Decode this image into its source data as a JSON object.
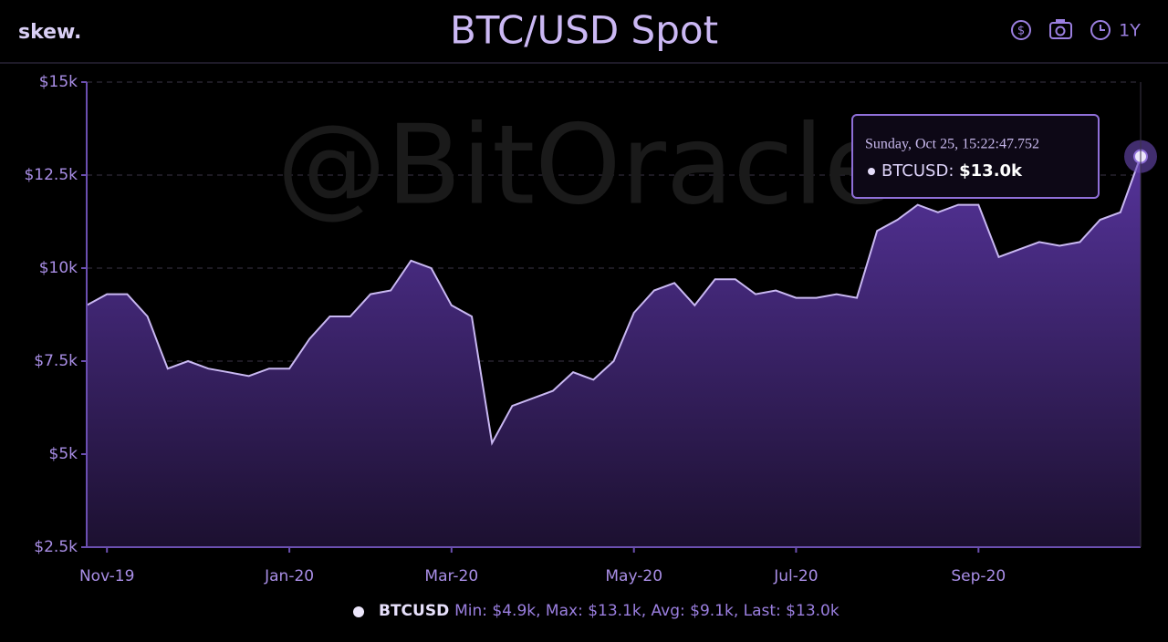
{
  "brand": "skew.",
  "watermark": "@BitOracle",
  "toolbar": {
    "currency": "$",
    "range": "1Y"
  },
  "chart_data": {
    "type": "area",
    "title": "BTC/USD Spot",
    "categories": [
      null,
      "Nov-19",
      null,
      null,
      null,
      null,
      null,
      null,
      null,
      null,
      "Jan-20",
      null,
      null,
      null,
      null,
      null,
      null,
      null,
      "Mar-20",
      null,
      null,
      null,
      null,
      null,
      null,
      null,
      null,
      "May-20",
      null,
      null,
      null,
      null,
      null,
      null,
      null,
      "Jul-20",
      null,
      null,
      null,
      null,
      null,
      null,
      null,
      null,
      "Sep-20",
      null,
      null,
      null,
      null,
      null,
      null,
      null,
      null
    ],
    "series": [
      {
        "name": "BTCUSD",
        "color": "#c9b8f2",
        "values": [
          9000,
          9300,
          9300,
          8700,
          7300,
          7500,
          7300,
          7200,
          7100,
          7300,
          7300,
          8100,
          8700,
          8700,
          9300,
          9400,
          10200,
          10000,
          9000,
          8700,
          5300,
          6300,
          6500,
          6700,
          7200,
          7000,
          7500,
          8800,
          9400,
          9600,
          9000,
          9700,
          9700,
          9300,
          9400,
          9200,
          9200,
          9300,
          9200,
          11000,
          11300,
          11700,
          11500,
          11700,
          11700,
          10300,
          10500,
          10700,
          10600,
          10700,
          11300,
          11500,
          13000
        ],
        "value_labels": [
          null,
          null,
          null,
          null,
          null,
          null,
          null,
          null,
          null,
          null,
          null,
          null,
          null,
          null,
          null,
          null,
          null,
          null,
          null,
          null,
          null,
          null,
          null,
          null,
          null,
          null,
          null,
          null,
          null,
          null,
          null,
          null,
          null,
          null,
          null,
          null,
          null,
          null,
          null,
          null,
          null,
          null,
          null,
          null,
          null,
          null,
          null,
          null,
          null,
          null,
          null,
          null,
          "$13.0k"
        ]
      }
    ],
    "ylim": [
      2500,
      15000
    ],
    "yticks": [
      {
        "value": 2500,
        "label": "$2.5k"
      },
      {
        "value": 5000,
        "label": "$5k"
      },
      {
        "value": 7500,
        "label": "$7.5k"
      },
      {
        "value": 10000,
        "label": "$10k"
      },
      {
        "value": 12500,
        "label": "$12.5k"
      },
      {
        "value": 15000,
        "label": "$15k"
      }
    ],
    "grid": true,
    "tooltip": {
      "date": "Sunday, Oct 25, 15:22:47.752",
      "series_label": "BTCUSD:"
    },
    "legend_stats": "Min: $4.9k, Max: $13.1k, Avg: $9.1k, Last: $13.0k"
  }
}
